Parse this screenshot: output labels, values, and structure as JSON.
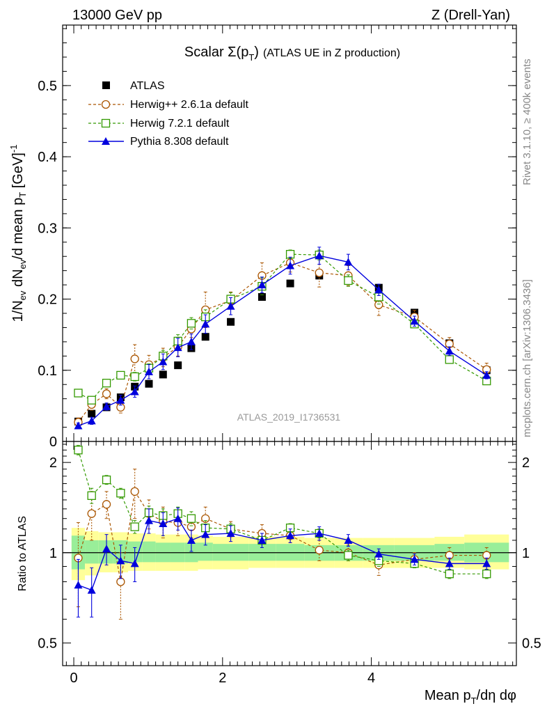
{
  "header": {
    "left": "13000 GeV pp",
    "right": "Z (Drell-Yan)"
  },
  "side_texts": {
    "rivet": "Rivet 3.1.10, ≥ 400k events",
    "mcplots": "mcplots.cern.ch [arXiv:1306.3436]"
  },
  "watermark": "ATLAS_2019_I1736531",
  "chart_data": [
    {
      "type": "scatter",
      "panel": "main",
      "title": "Scalar Σ(pT) (ATLAS UE in Z production)",
      "title_parts": {
        "main": "Scalar Σ(p",
        "sub": "T",
        "close": ")",
        "rest": "(ATLAS UE in Z production)"
      },
      "ylabel": "1/N_ev dN_ev/d mean p_T [GeV]^-1",
      "ylabel_parts": {
        "a": "1/N",
        "a_sub": "ev",
        "b": " dN",
        "b_sub": "ev",
        "c": "/d mean p",
        "c_sub": "T",
        "d": " [GeV]",
        "d_sup": "-1"
      },
      "xlim": [
        -0.15,
        5.95
      ],
      "ylim": [
        0,
        0.585
      ],
      "yticks": [
        0,
        0.1,
        0.2,
        0.3,
        0.4,
        0.5
      ],
      "ytick_labels": [
        "0",
        "0.1",
        "0.2",
        "0.3",
        "0.4",
        "0.5"
      ],
      "x": [
        0.06,
        0.24,
        0.44,
        0.63,
        0.82,
        1.01,
        1.2,
        1.4,
        1.58,
        1.77,
        2.11,
        2.53,
        2.91,
        3.3,
        3.69,
        4.1,
        4.58,
        5.05,
        5.55
      ],
      "series": [
        {
          "name": "ATLAS",
          "style": "data",
          "color": "#000000",
          "values": [
            0.028,
            0.039,
            0.048,
            0.062,
            0.077,
            0.081,
            0.094,
            0.107,
            0.131,
            0.147,
            0.168,
            0.203,
            0.222,
            0.233,
            0.23,
            0.216,
            0.181,
            0.138,
            0.1
          ]
        },
        {
          "name": "Herwig++ 2.6.1a default",
          "style": "circle",
          "color": "#aa5500",
          "values": [
            0.027,
            0.052,
            0.067,
            0.048,
            0.116,
            0.108,
            0.118,
            0.133,
            0.158,
            0.185,
            0.198,
            0.233,
            0.251,
            0.237,
            0.233,
            0.192,
            0.175,
            0.137,
            0.101
          ],
          "errors": [
            0.006,
            0.008,
            0.007,
            0.008,
            0.02,
            0.013,
            0.013,
            0.013,
            0.012,
            0.025,
            0.012,
            0.018,
            0.013,
            0.02,
            0.014,
            0.015,
            0.009,
            0.009,
            0.009
          ]
        },
        {
          "name": "Herwig 7.2.1 default",
          "style": "square",
          "color": "#339900",
          "values": [
            0.068,
            0.058,
            0.082,
            0.093,
            0.091,
            0.103,
            0.12,
            0.141,
            0.166,
            0.175,
            0.2,
            0.218,
            0.263,
            0.262,
            0.226,
            0.203,
            0.165,
            0.115,
            0.085
          ],
          "errors": [
            0.004,
            0.004,
            0.004,
            0.004,
            0.006,
            0.006,
            0.008,
            0.009,
            0.008,
            0.01,
            0.009,
            0.012,
            0.006,
            0.007,
            0.008,
            0.01,
            0.005,
            0.004,
            0.004
          ]
        },
        {
          "name": "Pythia 8.308 default",
          "style": "triangle",
          "color": "#0000dd",
          "values": [
            0.022,
            0.029,
            0.049,
            0.058,
            0.07,
            0.098,
            0.112,
            0.132,
            0.14,
            0.165,
            0.19,
            0.22,
            0.247,
            0.261,
            0.252,
            0.213,
            0.169,
            0.127,
            0.093
          ],
          "errors": [
            0.004,
            0.005,
            0.005,
            0.007,
            0.008,
            0.01,
            0.011,
            0.013,
            0.011,
            0.013,
            0.012,
            0.011,
            0.012,
            0.012,
            0.011,
            0.008,
            0.007,
            0.006,
            0.005
          ]
        }
      ]
    },
    {
      "type": "scatter",
      "panel": "ratio",
      "ylabel": "Ratio to ATLAS",
      "xlabel": "Mean pT/dη dφ",
      "xlabel_parts": {
        "a": "Mean p",
        "a_sub": "T",
        "b": "/dη dφ"
      },
      "xlim": [
        -0.15,
        5.95
      ],
      "ylim": [
        0.42,
        2.35
      ],
      "log_y": true,
      "yticks": [
        0.5,
        1,
        2
      ],
      "ytick_labels": [
        "0.5",
        "1",
        "2"
      ],
      "xticks": [
        0,
        2,
        4
      ],
      "xtick_labels": [
        "0",
        "2",
        "4"
      ],
      "x": [
        0.06,
        0.24,
        0.44,
        0.63,
        0.82,
        1.01,
        1.2,
        1.4,
        1.58,
        1.77,
        2.11,
        2.53,
        2.91,
        3.3,
        3.69,
        4.1,
        4.58,
        5.05,
        5.55
      ],
      "bands": {
        "edges": [
          -0.03,
          0.15,
          0.33,
          0.53,
          0.73,
          0.92,
          1.1,
          1.3,
          1.49,
          1.67,
          1.87,
          2.35,
          2.72,
          3.1,
          3.5,
          3.89,
          4.31,
          4.85,
          5.25,
          5.85
        ],
        "stat_up": [
          1.14,
          1.1,
          1.1,
          1.1,
          1.09,
          1.09,
          1.08,
          1.08,
          1.08,
          1.08,
          1.07,
          1.07,
          1.07,
          1.06,
          1.06,
          1.06,
          1.06,
          1.07,
          1.08
        ],
        "stat_dn": [
          0.88,
          0.92,
          0.92,
          0.92,
          0.93,
          0.93,
          0.93,
          0.93,
          0.93,
          0.94,
          0.94,
          0.94,
          0.94,
          0.94,
          0.94,
          0.94,
          0.94,
          0.94,
          0.93
        ],
        "syst_up": [
          1.21,
          1.18,
          1.17,
          1.17,
          1.16,
          1.16,
          1.15,
          1.15,
          1.15,
          1.14,
          1.13,
          1.13,
          1.13,
          1.12,
          1.12,
          1.12,
          1.12,
          1.13,
          1.15
        ],
        "syst_dn": [
          0.81,
          0.84,
          0.86,
          0.86,
          0.87,
          0.87,
          0.87,
          0.87,
          0.87,
          0.88,
          0.88,
          0.89,
          0.89,
          0.89,
          0.89,
          0.89,
          0.89,
          0.89,
          0.88
        ],
        "stat_color": "#99ee99",
        "syst_color": "#ffff99"
      },
      "series": [
        {
          "name": "Herwig++ 2.6.1a default",
          "style": "circle",
          "color": "#aa5500",
          "values": [
            0.96,
            1.35,
            1.45,
            0.8,
            1.6,
            1.35,
            1.27,
            1.26,
            1.22,
            1.3,
            1.2,
            1.16,
            1.14,
            1.02,
            1.0,
            0.91,
            0.95,
            0.98,
            0.98
          ],
          "errors": [
            0.3,
            0.25,
            0.15,
            0.2,
            0.3,
            0.15,
            0.15,
            0.12,
            0.1,
            0.12,
            0.07,
            0.08,
            0.06,
            0.08,
            0.06,
            0.07,
            0.05,
            0.06,
            0.06
          ]
        },
        {
          "name": "Herwig 7.2.1 default",
          "style": "square",
          "color": "#339900",
          "values": [
            2.2,
            1.55,
            1.75,
            1.58,
            1.22,
            1.36,
            1.33,
            1.35,
            1.3,
            1.21,
            1.2,
            1.1,
            1.21,
            1.16,
            0.98,
            0.94,
            0.92,
            0.85,
            0.85
          ],
          "errors": [
            0.08,
            0.09,
            0.06,
            0.06,
            0.06,
            0.07,
            0.07,
            0.07,
            0.07,
            0.07,
            0.05,
            0.06,
            0.04,
            0.04,
            0.04,
            0.04,
            0.03,
            0.03,
            0.03
          ]
        },
        {
          "name": "Pythia 8.308 default",
          "style": "triangle",
          "color": "#0000dd",
          "values": [
            0.78,
            0.75,
            1.03,
            0.94,
            0.92,
            1.28,
            1.25,
            1.3,
            1.1,
            1.15,
            1.16,
            1.1,
            1.14,
            1.16,
            1.1,
            0.99,
            0.95,
            0.92,
            0.92
          ],
          "errors": [
            0.17,
            0.14,
            0.12,
            0.12,
            0.12,
            0.12,
            0.11,
            0.11,
            0.09,
            0.09,
            0.07,
            0.06,
            0.06,
            0.06,
            0.05,
            0.04,
            0.04,
            0.04,
            0.04
          ]
        }
      ]
    }
  ]
}
